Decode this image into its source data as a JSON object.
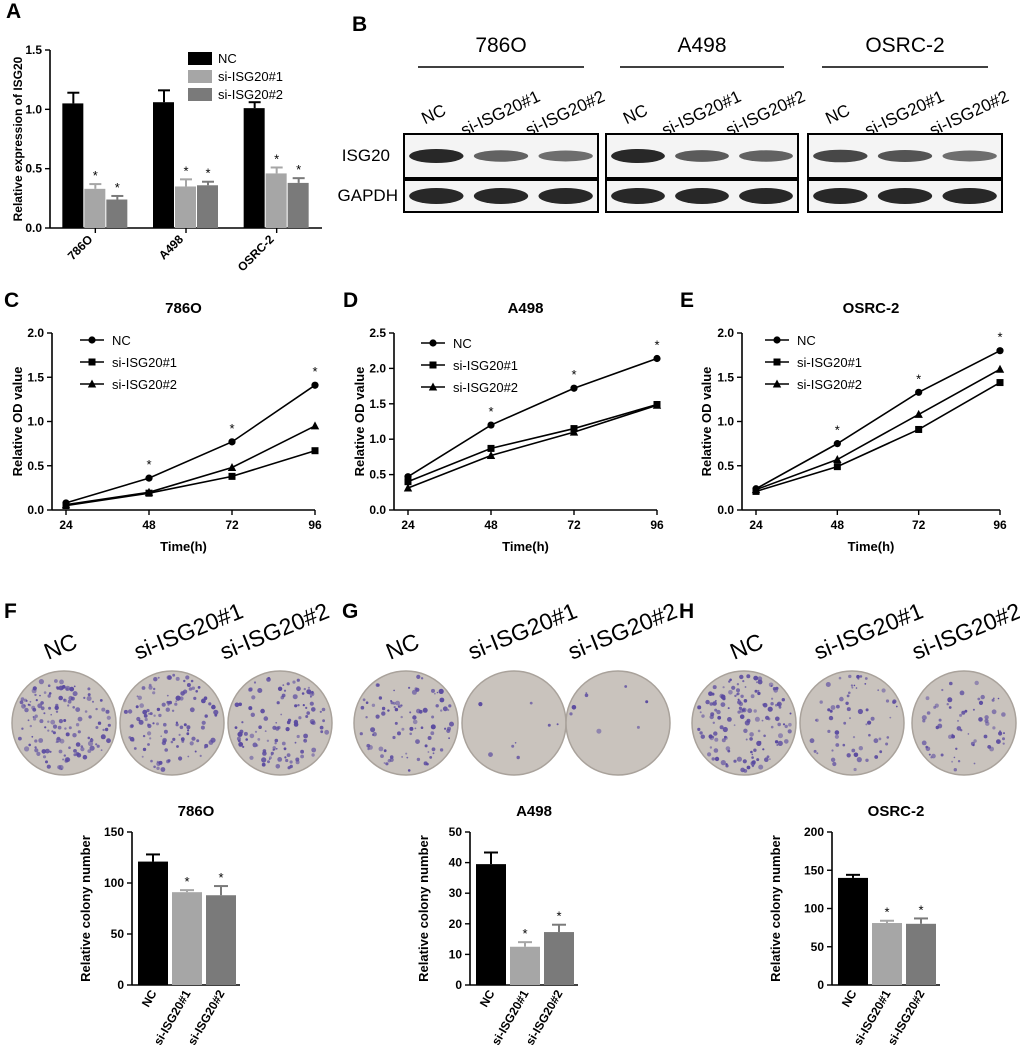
{
  "panels": {
    "A": "A",
    "B": "B",
    "C": "C",
    "D": "D",
    "E": "E",
    "F": "F",
    "G": "G",
    "H": "H"
  },
  "colors": {
    "NC": "#000000",
    "si1": "#a6a6a6",
    "si2": "#7a7a7a",
    "plate": "#c9c3bd",
    "stain": "#5a4aa0",
    "band": "#1c1c1c"
  },
  "western": {
    "groups": [
      "786O",
      "A498",
      "OSRC-2"
    ],
    "lanes": [
      "NC",
      "si-ISG20#1",
      "si-ISG20#2"
    ],
    "rows": [
      "ISG20",
      "GAPDH"
    ],
    "band_intensity_isg20": [
      [
        1.0,
        0.55,
        0.45
      ],
      [
        1.0,
        0.6,
        0.55
      ],
      [
        0.75,
        0.65,
        0.45
      ]
    ],
    "band_intensity_gapdh": [
      [
        1,
        1,
        1
      ],
      [
        1,
        1,
        1
      ],
      [
        1,
        1,
        1
      ]
    ]
  },
  "colony_plates": {
    "F": {
      "labels": [
        "NC",
        "si-ISG20#1",
        "si-ISG20#2"
      ],
      "density": [
        0.55,
        0.45,
        0.45
      ]
    },
    "G": {
      "labels": [
        "NC",
        "si-ISG20#1",
        "si-ISG20#2"
      ],
      "density": [
        0.35,
        0.03,
        0.03
      ]
    },
    "H": {
      "labels": [
        "NC",
        "si-ISG20#1",
        "si-ISG20#2"
      ],
      "density": [
        0.55,
        0.25,
        0.25
      ]
    }
  },
  "chart_data": [
    {
      "id": "A",
      "type": "bar",
      "title": "",
      "categories": [
        "786O",
        "A498",
        "OSRC-2"
      ],
      "series": [
        {
          "name": "NC",
          "values": [
            1.05,
            1.06,
            1.01
          ],
          "errors": [
            0.09,
            0.1,
            0.05
          ],
          "sig": [
            "",
            "",
            ""
          ]
        },
        {
          "name": "si-ISG20#1",
          "values": [
            0.33,
            0.35,
            0.46
          ],
          "errors": [
            0.04,
            0.06,
            0.05
          ],
          "sig": [
            "*",
            "*",
            "*"
          ]
        },
        {
          "name": "si-ISG20#2",
          "values": [
            0.24,
            0.36,
            0.38
          ],
          "errors": [
            0.03,
            0.03,
            0.04
          ],
          "sig": [
            "*",
            "*",
            "*"
          ]
        }
      ],
      "ylabel": "Relative expression of ISG20",
      "xlabel": "",
      "ylim": [
        0,
        1.5
      ],
      "yticks": [
        "0.0",
        "0.5",
        "1.0",
        "1.5"
      ],
      "tickvals": [
        0,
        0.5,
        1.0,
        1.5
      ]
    },
    {
      "id": "C",
      "type": "line",
      "title": "786O",
      "x": [
        24,
        48,
        72,
        96
      ],
      "xticks": [
        "24",
        "48",
        "72",
        "96"
      ],
      "series": [
        {
          "name": "NC",
          "marker": "circle",
          "values": [
            0.08,
            0.36,
            0.77,
            1.41
          ],
          "sig": [
            "",
            "*",
            "*",
            "*"
          ]
        },
        {
          "name": "si-ISG20#1",
          "marker": "square",
          "values": [
            0.05,
            0.19,
            0.38,
            0.67
          ]
        },
        {
          "name": "si-ISG20#2",
          "marker": "triangle",
          "values": [
            0.06,
            0.2,
            0.48,
            0.95
          ]
        }
      ],
      "xlabel": "Time(h)",
      "ylabel": "Relative OD value",
      "ylim": [
        0,
        2.0
      ],
      "yticks": [
        "0.0",
        "0.5",
        "1.0",
        "1.5",
        "2.0"
      ],
      "tickvals": [
        0,
        0.5,
        1.0,
        1.5,
        2.0
      ]
    },
    {
      "id": "D",
      "type": "line",
      "title": "A498",
      "x": [
        24,
        48,
        72,
        96
      ],
      "xticks": [
        "24",
        "48",
        "72",
        "96"
      ],
      "series": [
        {
          "name": "NC",
          "marker": "circle",
          "values": [
            0.47,
            1.2,
            1.72,
            2.14
          ],
          "sig": [
            "",
            "*",
            "*",
            "*"
          ]
        },
        {
          "name": "si-ISG20#1",
          "marker": "square",
          "values": [
            0.4,
            0.87,
            1.15,
            1.49
          ]
        },
        {
          "name": "si-ISG20#2",
          "marker": "triangle",
          "values": [
            0.31,
            0.77,
            1.1,
            1.48
          ]
        }
      ],
      "xlabel": "Time(h)",
      "ylabel": "Relative OD value",
      "ylim": [
        0,
        2.5
      ],
      "yticks": [
        "0.0",
        "0.5",
        "1.0",
        "1.5",
        "2.0",
        "2.5"
      ],
      "tickvals": [
        0,
        0.5,
        1.0,
        1.5,
        2.0,
        2.5
      ]
    },
    {
      "id": "E",
      "type": "line",
      "title": "OSRC-2",
      "x": [
        24,
        48,
        72,
        96
      ],
      "xticks": [
        "24",
        "48",
        "72",
        "96"
      ],
      "series": [
        {
          "name": "NC",
          "marker": "circle",
          "values": [
            0.24,
            0.75,
            1.33,
            1.8
          ],
          "sig": [
            "",
            "*",
            "*",
            "*"
          ]
        },
        {
          "name": "si-ISG20#1",
          "marker": "square",
          "values": [
            0.21,
            0.49,
            0.91,
            1.44
          ]
        },
        {
          "name": "si-ISG20#2",
          "marker": "triangle",
          "values": [
            0.23,
            0.57,
            1.08,
            1.59
          ]
        }
      ],
      "xlabel": "Time(h)",
      "ylabel": "Relative OD value",
      "ylim": [
        0,
        2.0
      ],
      "yticks": [
        "0.0",
        "0.5",
        "1.0",
        "1.5",
        "2.0"
      ],
      "tickvals": [
        0,
        0.5,
        1.0,
        1.5,
        2.0
      ]
    },
    {
      "id": "F",
      "type": "bar",
      "title": "786O",
      "categories": [
        "NC",
        "si-ISG20#1",
        "si-ISG20#2"
      ],
      "values": [
        121,
        91,
        88
      ],
      "errors": [
        7,
        2,
        9
      ],
      "sig": [
        "",
        "*",
        "*"
      ],
      "ylabel": "Relative colony number",
      "ylim": [
        0,
        150
      ],
      "yticks": [
        "0",
        "50",
        "100",
        "150"
      ],
      "tickvals": [
        0,
        50,
        100,
        150
      ]
    },
    {
      "id": "G",
      "type": "bar",
      "title": "A498",
      "categories": [
        "NC",
        "si-ISG20#1",
        "si-ISG20#2"
      ],
      "values": [
        39.5,
        12.5,
        17.3
      ],
      "errors": [
        3.8,
        1.5,
        2.4
      ],
      "sig": [
        "",
        "*",
        "*"
      ],
      "ylabel": "Relative colony number",
      "ylim": [
        0,
        50
      ],
      "yticks": [
        "0",
        "10",
        "20",
        "30",
        "40",
        "50"
      ],
      "tickvals": [
        0,
        10,
        20,
        30,
        40,
        50
      ]
    },
    {
      "id": "H",
      "type": "bar",
      "title": "OSRC-2",
      "categories": [
        "NC",
        "si-ISG20#1",
        "si-ISG20#2"
      ],
      "values": [
        140,
        81,
        80
      ],
      "errors": [
        4,
        3,
        7
      ],
      "sig": [
        "",
        "*",
        "*"
      ],
      "ylabel": "Relative colony number",
      "ylim": [
        0,
        200
      ],
      "yticks": [
        "0",
        "50",
        "100",
        "150",
        "200"
      ],
      "tickvals": [
        0,
        50,
        100,
        150,
        200
      ]
    }
  ]
}
